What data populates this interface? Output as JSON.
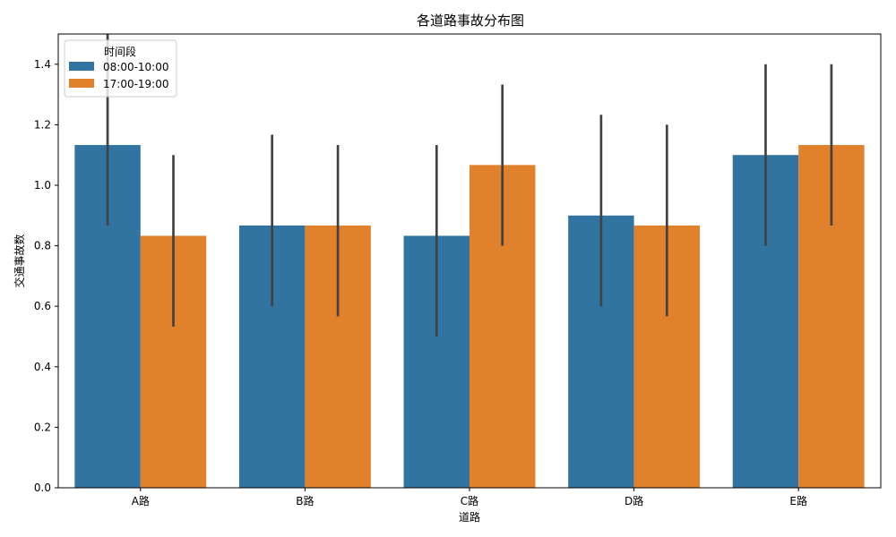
{
  "chart_data": {
    "type": "bar",
    "title": "各道路事故分布图",
    "xlabel": "道路",
    "ylabel": "交通事故数",
    "categories": [
      "A路",
      "B路",
      "C路",
      "D路",
      "E路"
    ],
    "series": [
      {
        "name": "08:00-10:00",
        "color": "#3274a1",
        "values": [
          1.133,
          0.867,
          0.833,
          0.9,
          1.1
        ],
        "ci_low": [
          0.867,
          0.6,
          0.5,
          0.6,
          0.8
        ],
        "ci_high": [
          1.5,
          1.167,
          1.133,
          1.233,
          1.4
        ]
      },
      {
        "name": "17:00-19:00",
        "color": "#e1812c",
        "values": [
          0.833,
          0.867,
          1.067,
          0.867,
          1.133
        ],
        "ci_low": [
          0.533,
          0.567,
          0.8,
          0.567,
          0.867
        ],
        "ci_high": [
          1.1,
          1.133,
          1.333,
          1.2,
          1.4
        ]
      }
    ],
    "ylim": [
      0,
      1.5
    ],
    "yticks": [
      0.0,
      0.2,
      0.4,
      0.6,
      0.8,
      1.0,
      1.2,
      1.4
    ],
    "ytick_labels": [
      "0.0",
      "0.2",
      "0.4",
      "0.6",
      "0.8",
      "1.0",
      "1.2",
      "1.4"
    ],
    "legend": {
      "title": "时间段",
      "position": "upper left",
      "entries": [
        "08:00-10:00",
        "17:00-19:00"
      ]
    },
    "grid": false,
    "error_bar_color": "#424242"
  }
}
